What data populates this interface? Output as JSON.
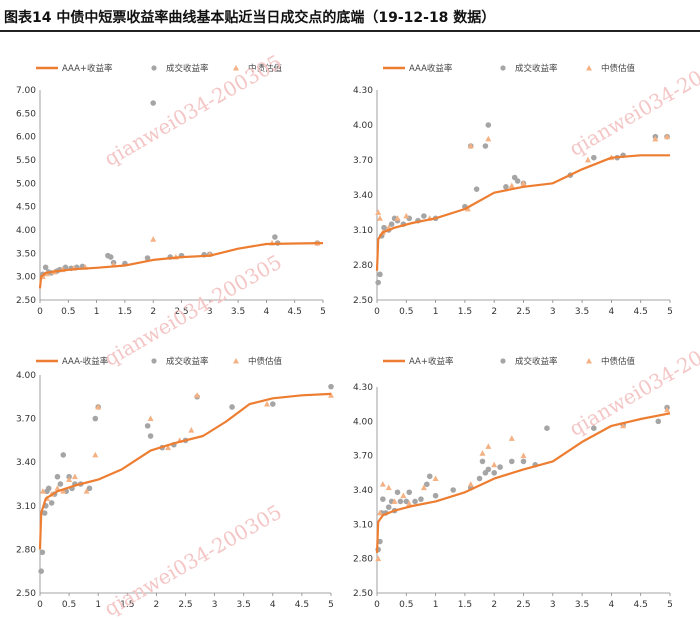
{
  "header": {
    "title": "图表14    中债中短票收益率曲线基本贴近当日成交点的底端（19-12-18 数据）"
  },
  "watermark": "qianwei034-200305",
  "colors": {
    "curve": "#ed7d31",
    "trade": "#a5a5a5",
    "estimate": "#f4b183"
  },
  "chart_data": [
    {
      "type": "scatter",
      "legend": [
        "AAA+收益率",
        "成交收益率",
        "中债估值"
      ],
      "xlim": [
        0,
        5
      ],
      "ylim": [
        2.5,
        7.0
      ],
      "xticks": [
        "0",
        "0.5",
        "1",
        "1.5",
        "2",
        "2.5",
        "3",
        "3.5",
        "4",
        "4.5",
        "5"
      ],
      "yticks": [
        "2.50",
        "3.00",
        "3.50",
        "4.00",
        "4.50",
        "5.00",
        "5.50",
        "6.00",
        "6.50",
        "7.00"
      ],
      "curve": [
        [
          0,
          2.75
        ],
        [
          0.02,
          3.0
        ],
        [
          0.1,
          3.08
        ],
        [
          0.3,
          3.12
        ],
        [
          0.6,
          3.16
        ],
        [
          1.0,
          3.19
        ],
        [
          1.5,
          3.24
        ],
        [
          2.0,
          3.36
        ],
        [
          2.5,
          3.42
        ],
        [
          3.0,
          3.45
        ],
        [
          3.5,
          3.6
        ],
        [
          4.0,
          3.7
        ],
        [
          4.5,
          3.71
        ],
        [
          5.0,
          3.72
        ]
      ],
      "trades": [
        [
          0.05,
          3.05
        ],
        [
          0.1,
          3.2
        ],
        [
          0.15,
          3.1
        ],
        [
          0.2,
          3.08
        ],
        [
          0.3,
          3.12
        ],
        [
          0.35,
          3.15
        ],
        [
          0.45,
          3.2
        ],
        [
          0.55,
          3.18
        ],
        [
          0.65,
          3.2
        ],
        [
          0.75,
          3.22
        ],
        [
          1.2,
          3.45
        ],
        [
          1.25,
          3.42
        ],
        [
          1.3,
          3.3
        ],
        [
          1.5,
          3.28
        ],
        [
          1.9,
          3.4
        ],
        [
          2.0,
          6.72
        ],
        [
          2.3,
          3.42
        ],
        [
          2.5,
          3.45
        ],
        [
          2.9,
          3.47
        ],
        [
          3.0,
          3.48
        ],
        [
          4.15,
          3.85
        ],
        [
          4.2,
          3.72
        ],
        [
          4.9,
          3.72
        ]
      ],
      "estimates": [
        [
          0.05,
          3.0
        ],
        [
          0.12,
          3.06
        ],
        [
          0.25,
          3.1
        ],
        [
          0.4,
          3.15
        ],
        [
          0.6,
          3.18
        ],
        [
          0.8,
          3.2
        ],
        [
          1.3,
          3.25
        ],
        [
          2.0,
          3.8
        ],
        [
          2.4,
          3.42
        ],
        [
          3.0,
          3.48
        ],
        [
          4.1,
          3.72
        ],
        [
          4.9,
          3.72
        ]
      ]
    },
    {
      "type": "scatter",
      "legend": [
        "AAA收益率",
        "成交收益率",
        "中债估值"
      ],
      "xlim": [
        0,
        5
      ],
      "ylim": [
        2.5,
        4.3
      ],
      "xticks": [
        "0",
        "0.5",
        "1",
        "1.5",
        "2",
        "2.5",
        "3",
        "3.5",
        "4",
        "4.5",
        "5"
      ],
      "yticks": [
        "2.50",
        "2.80",
        "3.10",
        "3.40",
        "3.70",
        "4.00",
        "4.30"
      ],
      "curve": [
        [
          0,
          2.75
        ],
        [
          0.02,
          3.02
        ],
        [
          0.1,
          3.08
        ],
        [
          0.3,
          3.12
        ],
        [
          0.6,
          3.16
        ],
        [
          1.0,
          3.2
        ],
        [
          1.5,
          3.28
        ],
        [
          2.0,
          3.42
        ],
        [
          2.5,
          3.47
        ],
        [
          3.0,
          3.5
        ],
        [
          3.5,
          3.62
        ],
        [
          4.0,
          3.72
        ],
        [
          4.5,
          3.74
        ],
        [
          5.0,
          3.74
        ]
      ],
      "trades": [
        [
          0.02,
          2.65
        ],
        [
          0.05,
          2.72
        ],
        [
          0.08,
          3.05
        ],
        [
          0.12,
          3.12
        ],
        [
          0.2,
          3.1
        ],
        [
          0.25,
          3.15
        ],
        [
          0.3,
          3.2
        ],
        [
          0.35,
          3.18
        ],
        [
          0.45,
          3.15
        ],
        [
          0.55,
          3.2
        ],
        [
          0.7,
          3.18
        ],
        [
          0.8,
          3.22
        ],
        [
          1.0,
          3.2
        ],
        [
          1.5,
          3.3
        ],
        [
          1.6,
          3.82
        ],
        [
          1.7,
          3.45
        ],
        [
          1.85,
          3.82
        ],
        [
          1.9,
          4.0
        ],
        [
          2.2,
          3.47
        ],
        [
          2.35,
          3.55
        ],
        [
          2.4,
          3.52
        ],
        [
          2.5,
          3.5
        ],
        [
          3.3,
          3.57
        ],
        [
          3.7,
          3.72
        ],
        [
          4.1,
          3.72
        ],
        [
          4.2,
          3.74
        ],
        [
          4.75,
          3.9
        ],
        [
          4.95,
          3.9
        ]
      ],
      "estimates": [
        [
          0.02,
          3.25
        ],
        [
          0.05,
          3.2
        ],
        [
          0.1,
          3.08
        ],
        [
          0.2,
          3.12
        ],
        [
          0.35,
          3.2
        ],
        [
          0.5,
          3.22
        ],
        [
          0.9,
          3.2
        ],
        [
          1.55,
          3.28
        ],
        [
          1.6,
          3.82
        ],
        [
          1.9,
          3.88
        ],
        [
          2.3,
          3.48
        ],
        [
          2.5,
          3.5
        ],
        [
          3.6,
          3.7
        ],
        [
          4.0,
          3.72
        ],
        [
          4.75,
          3.88
        ],
        [
          4.95,
          3.9
        ]
      ]
    },
    {
      "type": "scatter",
      "legend": [
        "AAA-收益率",
        "成交收益率",
        "中债估值"
      ],
      "xlim": [
        0,
        5
      ],
      "ylim": [
        2.5,
        4.0
      ],
      "xticks": [
        "0",
        "0.5",
        "1",
        "1.5",
        "2",
        "2.5",
        "3",
        "3.5",
        "4",
        "4.5",
        "5"
      ],
      "yticks": [
        "2.50",
        "2.80",
        "3.10",
        "3.40",
        "3.70",
        "4.00"
      ],
      "curve": [
        [
          0,
          2.8
        ],
        [
          0.02,
          3.05
        ],
        [
          0.1,
          3.15
        ],
        [
          0.3,
          3.2
        ],
        [
          0.6,
          3.24
        ],
        [
          1.0,
          3.28
        ],
        [
          1.4,
          3.35
        ],
        [
          1.9,
          3.48
        ],
        [
          2.3,
          3.53
        ],
        [
          2.8,
          3.58
        ],
        [
          3.2,
          3.68
        ],
        [
          3.6,
          3.8
        ],
        [
          4.0,
          3.84
        ],
        [
          4.5,
          3.86
        ],
        [
          5.0,
          3.87
        ]
      ],
      "trades": [
        [
          0.02,
          2.65
        ],
        [
          0.04,
          2.78
        ],
        [
          0.08,
          3.05
        ],
        [
          0.1,
          3.1
        ],
        [
          0.12,
          3.2
        ],
        [
          0.15,
          3.22
        ],
        [
          0.2,
          3.12
        ],
        [
          0.25,
          3.18
        ],
        [
          0.3,
          3.3
        ],
        [
          0.35,
          3.25
        ],
        [
          0.4,
          3.45
        ],
        [
          0.45,
          3.2
        ],
        [
          0.5,
          3.3
        ],
        [
          0.55,
          3.22
        ],
        [
          0.6,
          3.25
        ],
        [
          0.7,
          3.25
        ],
        [
          0.85,
          3.22
        ],
        [
          0.95,
          3.7
        ],
        [
          1.0,
          3.78
        ],
        [
          1.85,
          3.65
        ],
        [
          1.9,
          3.58
        ],
        [
          2.1,
          3.5
        ],
        [
          2.3,
          3.52
        ],
        [
          2.5,
          3.55
        ],
        [
          2.7,
          3.85
        ],
        [
          3.3,
          3.78
        ],
        [
          4.0,
          3.8
        ],
        [
          5.0,
          3.92
        ]
      ],
      "estimates": [
        [
          0.05,
          3.2
        ],
        [
          0.12,
          3.15
        ],
        [
          0.2,
          3.18
        ],
        [
          0.3,
          3.22
        ],
        [
          0.4,
          3.2
        ],
        [
          0.5,
          3.28
        ],
        [
          0.6,
          3.3
        ],
        [
          0.8,
          3.2
        ],
        [
          0.95,
          3.45
        ],
        [
          1.0,
          3.78
        ],
        [
          1.9,
          3.7
        ],
        [
          2.2,
          3.5
        ],
        [
          2.4,
          3.55
        ],
        [
          2.6,
          3.62
        ],
        [
          2.7,
          3.86
        ],
        [
          3.9,
          3.8
        ],
        [
          5.0,
          3.86
        ]
      ]
    },
    {
      "type": "scatter",
      "legend": [
        "AA+收益率",
        "成交收益率",
        "中债估值"
      ],
      "xlim": [
        0,
        5
      ],
      "ylim": [
        2.5,
        4.3
      ],
      "xticks": [
        "0",
        "0.5",
        "1",
        "1.5",
        "2",
        "2.5",
        "3",
        "3.5",
        "4",
        "4.5",
        "5"
      ],
      "yticks": [
        "2.50",
        "2.80",
        "3.10",
        "3.40",
        "3.70",
        "4.00",
        "4.30"
      ],
      "curve": [
        [
          0,
          2.85
        ],
        [
          0.02,
          3.12
        ],
        [
          0.1,
          3.18
        ],
        [
          0.3,
          3.22
        ],
        [
          0.6,
          3.26
        ],
        [
          1.0,
          3.3
        ],
        [
          1.5,
          3.38
        ],
        [
          2.0,
          3.5
        ],
        [
          2.5,
          3.58
        ],
        [
          3.0,
          3.65
        ],
        [
          3.5,
          3.82
        ],
        [
          4.0,
          3.96
        ],
        [
          4.5,
          4.02
        ],
        [
          5.0,
          4.07
        ]
      ],
      "trades": [
        [
          0.02,
          2.88
        ],
        [
          0.05,
          2.95
        ],
        [
          0.08,
          3.2
        ],
        [
          0.1,
          3.32
        ],
        [
          0.15,
          3.2
        ],
        [
          0.2,
          3.25
        ],
        [
          0.25,
          3.3
        ],
        [
          0.3,
          3.22
        ],
        [
          0.35,
          3.38
        ],
        [
          0.4,
          3.3
        ],
        [
          0.5,
          3.3
        ],
        [
          0.55,
          3.38
        ],
        [
          0.65,
          3.3
        ],
        [
          0.75,
          3.32
        ],
        [
          0.85,
          3.45
        ],
        [
          0.9,
          3.52
        ],
        [
          1.0,
          3.35
        ],
        [
          1.3,
          3.4
        ],
        [
          1.6,
          3.42
        ],
        [
          1.75,
          3.5
        ],
        [
          1.8,
          3.65
        ],
        [
          1.85,
          3.55
        ],
        [
          1.9,
          3.58
        ],
        [
          2.0,
          3.55
        ],
        [
          2.1,
          3.6
        ],
        [
          2.3,
          3.65
        ],
        [
          2.5,
          3.65
        ],
        [
          2.7,
          3.62
        ],
        [
          2.9,
          3.94
        ],
        [
          3.7,
          3.94
        ],
        [
          4.2,
          3.97
        ],
        [
          4.8,
          4.0
        ],
        [
          4.95,
          4.12
        ]
      ],
      "estimates": [
        [
          0.02,
          2.8
        ],
        [
          0.05,
          3.2
        ],
        [
          0.1,
          3.45
        ],
        [
          0.2,
          3.42
        ],
        [
          0.3,
          3.3
        ],
        [
          0.45,
          3.35
        ],
        [
          0.55,
          3.28
        ],
        [
          0.8,
          3.42
        ],
        [
          1.0,
          3.5
        ],
        [
          1.6,
          3.45
        ],
        [
          1.8,
          3.72
        ],
        [
          1.9,
          3.78
        ],
        [
          2.0,
          3.62
        ],
        [
          2.3,
          3.85
        ],
        [
          2.5,
          3.7
        ],
        [
          4.2,
          3.96
        ],
        [
          4.95,
          4.1
        ]
      ]
    }
  ]
}
